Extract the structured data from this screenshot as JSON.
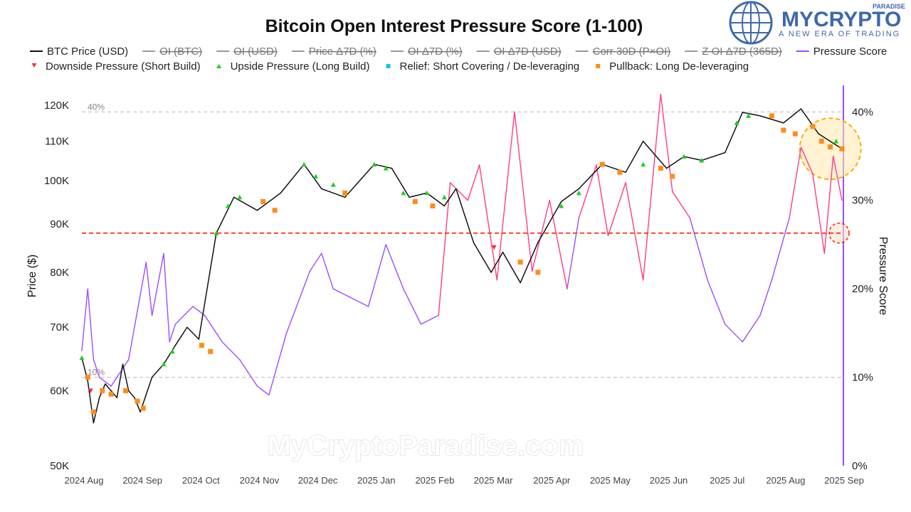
{
  "logo": {
    "top": "PARADISE",
    "main": "MYCRYPTO",
    "sub": "A NEW ERA OF TRADING",
    "icon": "globe-circuit-icon"
  },
  "watermark": "MyCryptoParadise.com",
  "colors": {
    "price": "#111111",
    "score": "#9b4dff",
    "score_hot": "#ff3b8a",
    "downside": "#ff2a3d",
    "upside": "#22cc22",
    "relief": "#11c4e8",
    "pullback": "#ff8c1a",
    "threshold": "#ff2200",
    "ref": "#bbbbbb",
    "highlight_fill": "#ffe9b0",
    "highlight_stroke": "#ffaa00",
    "logo": "#3d68ad"
  },
  "chart_data": {
    "type": "line",
    "title": "Bitcoin Open Interest Pressure Score (1-100)",
    "legend": {
      "row1": [
        {
          "label": "BTC Price (USD)",
          "style": "black-line",
          "active": true
        },
        {
          "label": "OI (BTC)",
          "style": "gray-line",
          "active": false
        },
        {
          "label": "OI (USD)",
          "style": "gray-line",
          "active": false
        },
        {
          "label": "Price Δ7D (%)",
          "style": "gray-line",
          "active": false
        },
        {
          "label": "OI Δ7D (%)",
          "style": "gray-line",
          "active": false
        },
        {
          "label": "OI Δ7D (USD)",
          "style": "gray-line",
          "active": false
        },
        {
          "label": "Corr 30D (P×OI)",
          "style": "gray-line",
          "active": false
        },
        {
          "label": "Z OI Δ7D (365D)",
          "style": "gray-line",
          "active": false
        },
        {
          "label": "Pressure Score",
          "style": "purple-line",
          "active": true
        }
      ],
      "row2": [
        {
          "label": "Downside Pressure (Short Build)",
          "marker": "red-triangle-down"
        },
        {
          "label": "Upside Pressure (Long Build)",
          "marker": "green-triangle-up"
        },
        {
          "label": "Relief: Short Covering / De-leveraging",
          "marker": "cyan-square"
        },
        {
          "label": "Pullback: Long De-leveraging",
          "marker": "orange-square"
        }
      ],
      "placement": "top"
    },
    "x_ticks": [
      "2024 Aug",
      "2024 Sep",
      "2024 Oct",
      "2024 Nov",
      "2024 Dec",
      "2025 Jan",
      "2025 Feb",
      "2025 Mar",
      "2025 Apr",
      "2025 May",
      "2025 Jun",
      "2025 Jul",
      "2025 Aug",
      "2025 Sep"
    ],
    "ylabel": "Price ($)",
    "y_scale": "log",
    "y_ticks": [
      {
        "v": 50000,
        "label": "50K"
      },
      {
        "v": 60000,
        "label": "60K"
      },
      {
        "v": 70000,
        "label": "70K"
      },
      {
        "v": 80000,
        "label": "80K"
      },
      {
        "v": 90000,
        "label": "90K"
      },
      {
        "v": 100000,
        "label": "100K"
      },
      {
        "v": 110000,
        "label": "110K"
      },
      {
        "v": 120000,
        "label": "120K"
      }
    ],
    "ylim": [
      50000,
      126000
    ],
    "y2label": "Pressure Score",
    "y2_ticks": [
      {
        "v": 0,
        "label": "0%"
      },
      {
        "v": 10,
        "label": "10%"
      },
      {
        "v": 20,
        "label": "20%"
      },
      {
        "v": 30,
        "label": "30%"
      },
      {
        "v": 40,
        "label": "40%"
      }
    ],
    "y2lim": [
      0,
      43
    ],
    "ref_lines": [
      {
        "axis": "y2",
        "value": 40,
        "label": "40%"
      },
      {
        "axis": "y2",
        "value": 10,
        "label": "10%"
      }
    ],
    "threshold_line": {
      "axis": "y",
      "value": 88000
    },
    "price": {
      "name": "BTC Price (USD)",
      "x": [
        0,
        0.1,
        0.2,
        0.3,
        0.4,
        0.5,
        0.6,
        0.7,
        0.8,
        0.9,
        1.0,
        1.2,
        1.4,
        1.6,
        1.8,
        2.0,
        2.3,
        2.6,
        3.0,
        3.4,
        3.8,
        4.1,
        4.5,
        5.0,
        5.3,
        5.6,
        5.9,
        6.2,
        6.4,
        6.7,
        7.0,
        7.2,
        7.5,
        7.8,
        8.2,
        8.5,
        8.9,
        9.3,
        9.6,
        10.0,
        10.3,
        10.6,
        11.0,
        11.3,
        11.6,
        12.0,
        12.3,
        12.6,
        13.0
      ],
      "y": [
        65000,
        61500,
        55500,
        59000,
        61000,
        60000,
        59000,
        64000,
        60000,
        59000,
        57000,
        62000,
        64000,
        67000,
        70000,
        68000,
        88000,
        96000,
        93000,
        97000,
        104000,
        98000,
        96000,
        104000,
        103000,
        96000,
        97000,
        94000,
        98000,
        86000,
        80000,
        84000,
        78000,
        86000,
        95000,
        98000,
        104000,
        102000,
        110000,
        103000,
        106000,
        105000,
        107000,
        118000,
        117000,
        115000,
        119000,
        112000,
        108000
      ]
    },
    "pressure_score": {
      "name": "Pressure Score",
      "x": [
        0,
        0.1,
        0.2,
        0.3,
        0.5,
        0.8,
        1.1,
        1.2,
        1.4,
        1.5,
        1.6,
        1.9,
        2.1,
        2.4,
        2.7,
        3.0,
        3.2,
        3.5,
        3.9,
        4.1,
        4.3,
        4.6,
        4.9,
        5.2,
        5.5,
        5.8,
        6.1,
        6.3,
        6.6,
        6.8,
        7.1,
        7.4,
        7.7,
        8.0,
        8.3,
        8.5,
        8.8,
        9.0,
        9.3,
        9.6,
        9.9,
        10.1,
        10.4,
        10.7,
        11.0,
        11.3,
        11.6,
        11.8,
        12.1,
        12.3,
        12.5,
        12.7,
        12.85,
        13.0
      ],
      "y": [
        13,
        20,
        12,
        10,
        9,
        12,
        23,
        17,
        24,
        14,
        16,
        18,
        17,
        14,
        12,
        9,
        8,
        15,
        22,
        24,
        20,
        19,
        18,
        25,
        20,
        16,
        17,
        32,
        30,
        34,
        21,
        40,
        22,
        30,
        20,
        28,
        34,
        26,
        32,
        21,
        42,
        31,
        28,
        21,
        16,
        14,
        17,
        21,
        28,
        36,
        33,
        24,
        35,
        30
      ]
    },
    "markers": {
      "downside": {
        "label": "Downside Pressure (Short Build)",
        "x": [
          0.15,
          7.05
        ],
        "y": [
          60000,
          85000
        ]
      },
      "upside": {
        "label": "Upside Pressure (Long Build)",
        "x": [
          0.0,
          1.4,
          1.55,
          2.3,
          2.5,
          2.7,
          3.8,
          4.0,
          4.3,
          5.0,
          5.2,
          5.5,
          5.9,
          6.2,
          8.2,
          8.5,
          9.6,
          10.3,
          10.6,
          11.2,
          11.4,
          12.9
        ],
        "y": [
          65000,
          64000,
          66000,
          88000,
          94000,
          96000,
          104000,
          101000,
          99000,
          104000,
          103000,
          97000,
          97000,
          96000,
          94000,
          97000,
          104000,
          106000,
          105000,
          115000,
          117000,
          110000
        ]
      },
      "relief": {
        "label": "Relief: Short Covering / De-leveraging",
        "x": [],
        "y": []
      },
      "pullback": {
        "label": "Pullback: Long De-leveraging",
        "x": [
          0.1,
          0.2,
          0.35,
          0.5,
          0.75,
          0.95,
          1.05,
          2.05,
          2.2,
          3.1,
          3.3,
          4.5,
          5.7,
          6.0,
          7.5,
          7.8,
          8.9,
          9.2,
          9.9,
          10.1,
          11.8,
          12.0,
          12.2,
          12.5,
          12.65,
          12.8,
          13.0
        ],
        "y": [
          62000,
          57000,
          60000,
          59500,
          60000,
          58500,
          57500,
          67000,
          66000,
          95000,
          93000,
          97000,
          95000,
          94000,
          82000,
          80000,
          104000,
          102000,
          103000,
          101000,
          117000,
          113000,
          112000,
          114000,
          110000,
          108500,
          108000
        ]
      }
    },
    "highlights": [
      {
        "shape": "circle",
        "color": "orange",
        "x": 12.85,
        "y": 108000
      },
      {
        "shape": "circle",
        "color": "red",
        "x": 13.0,
        "y": 88000
      }
    ]
  }
}
